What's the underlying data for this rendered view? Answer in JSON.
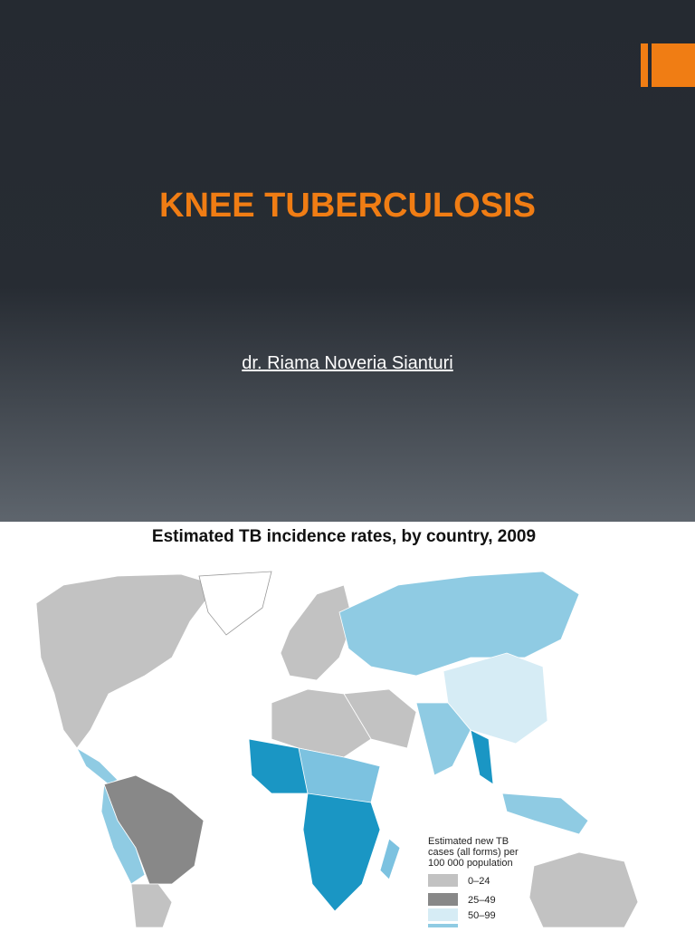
{
  "slide": {
    "title": "KNEE TUBERCULOSIS",
    "author": "dr. Riama Noveria Sianturi"
  },
  "map": {
    "title": "Estimated TB incidence rates, by country, 2009",
    "legend": {
      "title": [
        "Estimated new TB",
        "cases (all forms) per",
        "100 000 population"
      ],
      "items": [
        "0–24",
        "25–49",
        "50–99"
      ]
    }
  }
}
